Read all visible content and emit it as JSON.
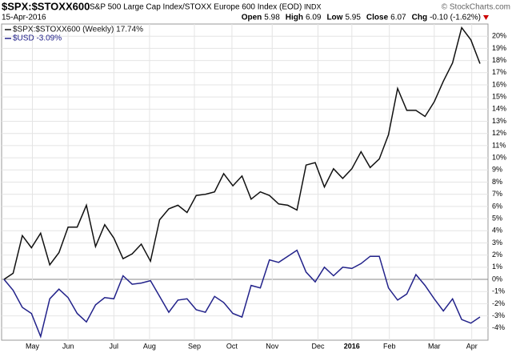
{
  "chart_data": {
    "type": "line",
    "title": "$SPX:$STOXX600",
    "subtitle": "S&P 500 Large Cap Index/STOXX Europe 600 Index (EOD)",
    "exchange": "INDX",
    "date": "15-Apr-2016",
    "credit": "© StockCharts.com",
    "quote": [
      {
        "label": "Open",
        "value": "5.98"
      },
      {
        "label": "High",
        "value": "6.09"
      },
      {
        "label": "Low",
        "value": "5.95"
      },
      {
        "label": "Close",
        "value": "6.07"
      },
      {
        "label": "Chg",
        "value": "-0.10 (-1.62%)"
      }
    ],
    "grid": true,
    "xlim": [
      0,
      52
    ],
    "xticks": [
      {
        "value": 3.1,
        "label": "May"
      },
      {
        "value": 7,
        "label": "Jun"
      },
      {
        "value": 12,
        "label": "Jul"
      },
      {
        "value": 15.9,
        "label": "Aug"
      },
      {
        "value": 20.8,
        "label": "Sep"
      },
      {
        "value": 24.9,
        "label": "Oct"
      },
      {
        "value": 29.3,
        "label": "Nov"
      },
      {
        "value": 34.3,
        "label": "Dec"
      },
      {
        "value": 38,
        "label": "2016"
      },
      {
        "value": 42.1,
        "label": "Feb"
      },
      {
        "value": 47,
        "label": "Mar"
      },
      {
        "value": 51.1,
        "label": "Apr"
      }
    ],
    "ylim": [
      -5,
      21
    ],
    "yticks": [
      {
        "value": -4,
        "label": "-4%"
      },
      {
        "value": -3,
        "label": "-3%"
      },
      {
        "value": -2,
        "label": "-2%"
      },
      {
        "value": -1,
        "label": "-1%"
      },
      {
        "value": 0,
        "label": "0%"
      },
      {
        "value": 1,
        "label": "1%"
      },
      {
        "value": 2,
        "label": "2%"
      },
      {
        "value": 3,
        "label": "3%"
      },
      {
        "value": 4,
        "label": "4%"
      },
      {
        "value": 5,
        "label": "5%"
      },
      {
        "value": 6,
        "label": "6%"
      },
      {
        "value": 7,
        "label": "7%"
      },
      {
        "value": 8,
        "label": "8%"
      },
      {
        "value": 9,
        "label": "9%"
      },
      {
        "value": 10,
        "label": "10%"
      },
      {
        "value": 11,
        "label": "11%"
      },
      {
        "value": 12,
        "label": "12%"
      },
      {
        "value": 13,
        "label": "13%"
      },
      {
        "value": 14,
        "label": "14%"
      },
      {
        "value": 15,
        "label": "15%"
      },
      {
        "value": 16,
        "label": "16%"
      },
      {
        "value": 17,
        "label": "17%"
      },
      {
        "value": 18,
        "label": "18%"
      },
      {
        "value": 19,
        "label": "19%"
      },
      {
        "value": 20,
        "label": "20%"
      }
    ],
    "series": [
      {
        "name": "$SPX:$STOXX600 (Weekly) 17.74%",
        "color": "#111111",
        "values": [
          0,
          0.5,
          3.6,
          2.6,
          3.8,
          1.2,
          2.2,
          4.3,
          4.3,
          6.1,
          2.7,
          4.5,
          3.4,
          1.7,
          2.1,
          2.9,
          1.5,
          4.9,
          5.8,
          6.1,
          5.5,
          6.9,
          7.0,
          7.2,
          8.7,
          7.7,
          8.5,
          6.6,
          7.2,
          6.9,
          6.2,
          6.1,
          5.7,
          9.4,
          9.6,
          7.6,
          9.1,
          8.3,
          9.1,
          10.5,
          9.2,
          9.9,
          11.9,
          15.7,
          13.9,
          13.9,
          13.4,
          14.6,
          16.3,
          17.8,
          20.7,
          19.7,
          17.74
        ]
      },
      {
        "name": "$USD -3.09%",
        "color": "#22228a",
        "values": [
          0,
          -0.9,
          -2.3,
          -2.8,
          -4.7,
          -1.6,
          -0.8,
          -1.5,
          -2.8,
          -3.5,
          -2.1,
          -1.5,
          -1.6,
          0.3,
          -0.4,
          -0.3,
          -0.1,
          -1.4,
          -2.7,
          -1.7,
          -1.6,
          -2.5,
          -2.7,
          -1.4,
          -1.9,
          -2.8,
          -3.1,
          -0.5,
          -0.7,
          1.6,
          1.4,
          1.9,
          2.4,
          0.6,
          -0.2,
          1.0,
          0.3,
          1.0,
          0.9,
          1.3,
          1.9,
          1.9,
          -0.7,
          -1.7,
          -1.2,
          0.4,
          -0.5,
          -1.6,
          -2.6,
          -1.6,
          -3.3,
          -3.6,
          -3.09
        ]
      }
    ]
  }
}
